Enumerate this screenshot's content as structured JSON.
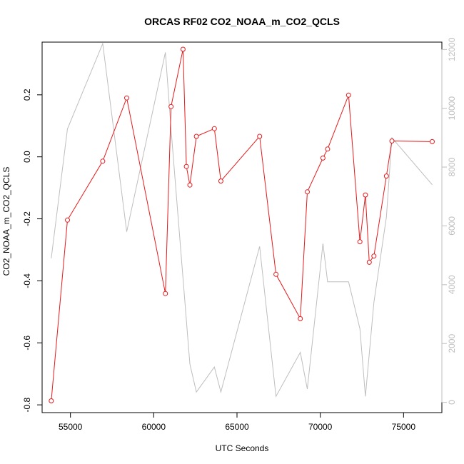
{
  "chart_data": {
    "type": "line",
    "title": "ORCAS RF02 CO2_NOAA_m_CO2_QCLS",
    "xlabel": "UTC Seconds",
    "ylabel": "CO2_NOAA_m_CO2_QCLS",
    "y2label": "",
    "xlim": [
      53300,
      77300
    ],
    "ylim": [
      -0.825,
      0.37
    ],
    "y2lim": [
      -350,
      12250
    ],
    "xticks": [
      55000,
      60000,
      65000,
      70000,
      75000
    ],
    "yticks": [
      -0.8,
      -0.6,
      -0.4,
      -0.2,
      0.0,
      0.2
    ],
    "y2ticks": [
      0,
      2000,
      4000,
      6000,
      8000,
      10000,
      12000
    ],
    "grid": false,
    "colors": {
      "primary": "#e41a1c",
      "secondary": "#bebebe",
      "axis": "#000000",
      "secondary_axis": "#bebebe"
    },
    "series": [
      {
        "axis": "left",
        "style": "line+points",
        "x": [
          53850,
          54820,
          56940,
          58380,
          60700,
          61040,
          61760,
          61960,
          62170,
          62560,
          63640,
          64030,
          66360,
          67340,
          68800,
          69220,
          70160,
          70440,
          71700,
          72380,
          72710,
          72940,
          73220,
          73970,
          74300,
          76720
        ],
        "y": [
          -0.787,
          -0.204,
          -0.014,
          0.19,
          -0.441,
          0.162,
          0.347,
          -0.031,
          -0.091,
          0.066,
          0.091,
          -0.078,
          0.066,
          -0.379,
          -0.522,
          -0.113,
          -0.004,
          0.025,
          0.199,
          -0.274,
          -0.123,
          -0.34,
          -0.32,
          -0.062,
          0.051,
          0.049
        ]
      },
      {
        "axis": "right",
        "style": "line",
        "x": [
          53850,
          54820,
          56940,
          58380,
          60700,
          61040,
          62170,
          62560,
          63640,
          64030,
          66360,
          67340,
          68800,
          69220,
          70160,
          70440,
          71700,
          72380,
          72710,
          73220,
          73970,
          74300,
          76720
        ],
        "y": [
          4900,
          9300,
          12200,
          5800,
          11900,
          9300,
          1300,
          350,
          1200,
          350,
          5300,
          200,
          1700,
          450,
          5400,
          4100,
          4100,
          2500,
          200,
          3400,
          6300,
          9000,
          7400
        ]
      }
    ]
  }
}
